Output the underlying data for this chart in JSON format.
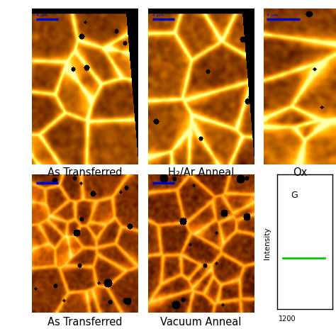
{
  "fig_width": 4.74,
  "fig_height": 4.74,
  "fig_dpi": 100,
  "bg_color": "#ffffff",
  "labels": {
    "top_row": [
      "As Transferred",
      "H₂/Ar Anneal",
      "Ox"
    ],
    "bottom_row": [
      "As Transferred",
      "Vacuum Anneal"
    ]
  },
  "label_fontsize": 10.5,
  "blue_color": "#7777cc",
  "scale_bar_color": "#0000cc",
  "green_marker_color": "#00cc00",
  "intensity_label": "Intensity",
  "xaxis_label": "1200"
}
